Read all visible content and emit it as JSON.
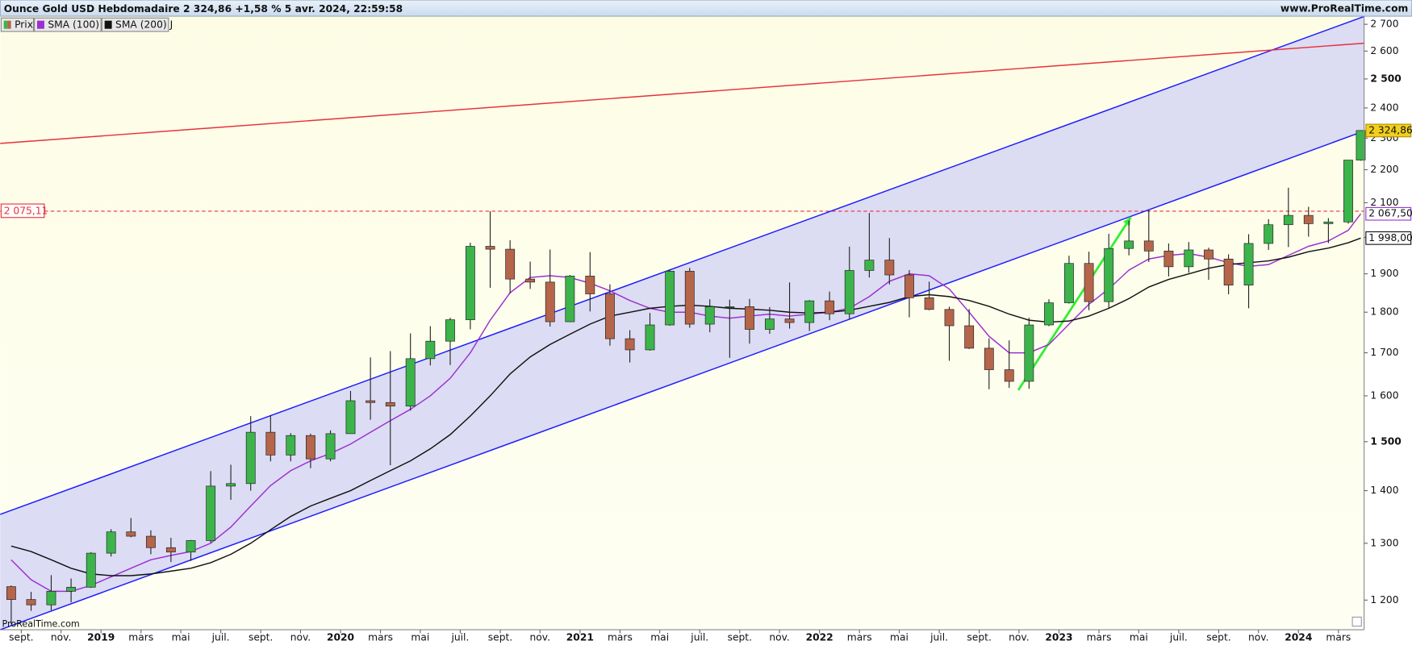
{
  "header": {
    "title": "Ounce Gold USD Hebdomadaire",
    "quote": "2 324,86 +1,58 % 5 avr. 2024, 22:59:58",
    "site": "www.ProRealTime.com",
    "watermark": "ProRealTime.com"
  },
  "chart_data": {
    "type": "candlestick",
    "log_scale": true,
    "xlim": [
      2018.579,
      2024.274
    ],
    "ylim": [
      1151,
      2731
    ],
    "xticks": [
      {
        "value": 2018.667,
        "label": "sept."
      },
      {
        "value": 2018.833,
        "label": "nov."
      },
      2019,
      {
        "value": 2019.167,
        "label": "mars"
      },
      {
        "value": 2019.333,
        "label": "mai"
      },
      {
        "value": 2019.5,
        "label": "juil."
      },
      {
        "value": 2019.667,
        "label": "sept."
      },
      {
        "value": 2019.833,
        "label": "nov."
      },
      2020,
      {
        "value": 2020.167,
        "label": "mars"
      },
      {
        "value": 2020.333,
        "label": "mai"
      },
      {
        "value": 2020.5,
        "label": "juil."
      },
      {
        "value": 2020.667,
        "label": "sept."
      },
      {
        "value": 2020.833,
        "label": "nov."
      },
      2021,
      {
        "value": 2021.167,
        "label": "mars"
      },
      {
        "value": 2021.333,
        "label": "mai"
      },
      {
        "value": 2021.5,
        "label": "juil."
      },
      {
        "value": 2021.667,
        "label": "sept."
      },
      {
        "value": 2021.833,
        "label": "nov."
      },
      2022,
      {
        "value": 2022.167,
        "label": "mars"
      },
      {
        "value": 2022.333,
        "label": "mai"
      },
      {
        "value": 2022.5,
        "label": "juil."
      },
      {
        "value": 2022.667,
        "label": "sept."
      },
      {
        "value": 2022.833,
        "label": "nov."
      },
      2023,
      {
        "value": 2023.167,
        "label": "mars"
      },
      {
        "value": 2023.333,
        "label": "mai"
      },
      {
        "value": 2023.5,
        "label": "juil."
      },
      {
        "value": 2023.667,
        "label": "sept."
      },
      {
        "value": 2023.833,
        "label": "nov."
      },
      2024,
      {
        "value": 2024.167,
        "label": "mars"
      }
    ],
    "yticks": [
      {
        "value": 1200,
        "label": "1 200"
      },
      {
        "value": 1300,
        "label": "1 300"
      },
      {
        "value": 1400,
        "label": "1 400"
      },
      {
        "value": 1500,
        "label": "1 500"
      },
      {
        "value": 1600,
        "label": "1 600"
      },
      {
        "value": 1700,
        "label": "1 700"
      },
      {
        "value": 1800,
        "label": "1 800"
      },
      {
        "value": 1900,
        "label": "1 900"
      },
      {
        "value": 2000,
        "label": "2 000"
      },
      {
        "value": 2100,
        "label": "2 100"
      },
      {
        "value": 2200,
        "label": "2 200"
      },
      {
        "value": 2300,
        "label": "2 300"
      },
      {
        "value": 2400,
        "label": "2 400"
      },
      {
        "value": 2500,
        "label": "2 500"
      },
      {
        "value": 2600,
        "label": "2 600"
      },
      {
        "value": 2700,
        "label": "2 700"
      }
    ],
    "price": {
      "name": "Prix",
      "up_color": "#3cb44b",
      "down_color": "#b5654a",
      "last_label": "2 324,86",
      "x": [
        2018.625,
        2018.708,
        2018.792,
        2018.875,
        2018.958,
        2019.042,
        2019.125,
        2019.208,
        2019.292,
        2019.375,
        2019.458,
        2019.542,
        2019.625,
        2019.708,
        2019.792,
        2019.875,
        2019.958,
        2020.042,
        2020.125,
        2020.208,
        2020.292,
        2020.375,
        2020.458,
        2020.542,
        2020.625,
        2020.708,
        2020.792,
        2020.875,
        2020.958,
        2021.042,
        2021.125,
        2021.208,
        2021.292,
        2021.375,
        2021.458,
        2021.542,
        2021.625,
        2021.708,
        2021.792,
        2021.875,
        2021.958,
        2022.042,
        2022.125,
        2022.208,
        2022.292,
        2022.375,
        2022.458,
        2022.542,
        2022.625,
        2022.708,
        2022.792,
        2022.875,
        2022.958,
        2023.042,
        2023.125,
        2023.208,
        2023.292,
        2023.375,
        2023.458,
        2023.542,
        2023.625,
        2023.708,
        2023.792,
        2023.875,
        2023.958,
        2024.042,
        2024.125,
        2024.208,
        2024.26
      ],
      "open": [
        1223,
        1201,
        1192,
        1215,
        1222,
        1282,
        1321,
        1313,
        1292,
        1284,
        1305,
        1409,
        1414,
        1520,
        1472,
        1513,
        1464,
        1517,
        1589,
        1585,
        1577,
        1686,
        1728,
        1781,
        1975,
        1967,
        1886,
        1878,
        1776,
        1894,
        1847,
        1734,
        1707,
        1768,
        1907,
        1770,
        1814,
        1814,
        1757,
        1783,
        1774,
        1829,
        1796,
        1909,
        1937,
        1897,
        1837,
        1807,
        1766,
        1711,
        1660,
        1633,
        1768,
        1824,
        1928,
        1827,
        1969,
        1990,
        1962,
        1919,
        1965,
        1940,
        1870,
        1983,
        2036,
        2063,
        2039,
        2044,
        2230
      ],
      "high": [
        1225,
        1214,
        1243,
        1237,
        1284,
        1326,
        1347,
        1324,
        1310,
        1306,
        1439,
        1452,
        1555,
        1557,
        1518,
        1517,
        1524,
        1611,
        1689,
        1704,
        1747,
        1765,
        1786,
        1985,
        2075,
        1992,
        1933,
        1966,
        1897,
        1959,
        1872,
        1755,
        1798,
        1912,
        1916,
        1833,
        1832,
        1834,
        1813,
        1877,
        1831,
        1853,
        1974,
        2070,
        1998,
        1910,
        1879,
        1814,
        1808,
        1735,
        1730,
        1786,
        1833,
        1949,
        1960,
        2010,
        2048,
        2079,
        1983,
        1987,
        1971,
        1953,
        2009,
        2052,
        2145,
        2088,
        2055,
        2223,
        2326
      ],
      "low": [
        1160,
        1182,
        1183,
        1196,
        1221,
        1276,
        1311,
        1280,
        1266,
        1268,
        1301,
        1382,
        1400,
        1459,
        1459,
        1445,
        1459,
        1517,
        1547,
        1451,
        1567,
        1670,
        1671,
        1757,
        1863,
        1848,
        1860,
        1764,
        1775,
        1802,
        1717,
        1677,
        1705,
        1766,
        1761,
        1750,
        1688,
        1722,
        1746,
        1759,
        1753,
        1780,
        1781,
        1890,
        1872,
        1787,
        1805,
        1681,
        1709,
        1615,
        1618,
        1616,
        1765,
        1822,
        1805,
        1810,
        1950,
        1932,
        1893,
        1903,
        1884,
        1846,
        1810,
        1965,
        1973,
        2002,
        1984,
        2039,
        2228
      ],
      "close": [
        1201,
        1192,
        1215,
        1222,
        1282,
        1321,
        1313,
        1292,
        1284,
        1305,
        1409,
        1414,
        1520,
        1472,
        1513,
        1464,
        1517,
        1589,
        1585,
        1577,
        1686,
        1728,
        1781,
        1975,
        1967,
        1886,
        1878,
        1776,
        1894,
        1847,
        1734,
        1707,
        1768,
        1907,
        1770,
        1814,
        1814,
        1757,
        1783,
        1774,
        1829,
        1796,
        1909,
        1937,
        1897,
        1837,
        1807,
        1766,
        1711,
        1660,
        1633,
        1768,
        1824,
        1928,
        1827,
        1969,
        1990,
        1962,
        1919,
        1965,
        1940,
        1870,
        1983,
        2036,
        2063,
        2039,
        2044,
        2230,
        2324.86
      ]
    },
    "series": [
      {
        "name": "SMA (100) J",
        "color": "#9b30d0",
        "last_label": "2 067,50",
        "values": [
          1270,
          1235,
          1215,
          1215,
          1225,
          1240,
          1255,
          1270,
          1278,
          1285,
          1300,
          1330,
          1370,
          1410,
          1440,
          1460,
          1475,
          1495,
          1520,
          1545,
          1570,
          1600,
          1640,
          1700,
          1780,
          1850,
          1890,
          1895,
          1890,
          1875,
          1855,
          1830,
          1810,
          1800,
          1800,
          1790,
          1785,
          1790,
          1795,
          1790,
          1795,
          1800,
          1810,
          1840,
          1880,
          1900,
          1895,
          1860,
          1800,
          1740,
          1700,
          1700,
          1720,
          1770,
          1820,
          1860,
          1910,
          1940,
          1950,
          1955,
          1945,
          1930,
          1920,
          1925,
          1950,
          1975,
          1990,
          2020,
          2067.5
        ]
      },
      {
        "name": "SMA (200) J",
        "color": "#111111",
        "last_label": "1 998,00",
        "values": [
          1295,
          1285,
          1270,
          1255,
          1245,
          1242,
          1242,
          1245,
          1250,
          1255,
          1265,
          1280,
          1300,
          1325,
          1350,
          1370,
          1385,
          1400,
          1420,
          1440,
          1460,
          1485,
          1515,
          1555,
          1600,
          1650,
          1690,
          1720,
          1745,
          1770,
          1790,
          1800,
          1810,
          1815,
          1818,
          1815,
          1810,
          1808,
          1805,
          1800,
          1798,
          1800,
          1805,
          1815,
          1825,
          1840,
          1845,
          1840,
          1830,
          1815,
          1795,
          1780,
          1775,
          1778,
          1790,
          1810,
          1835,
          1865,
          1885,
          1900,
          1915,
          1925,
          1930,
          1935,
          1945,
          1960,
          1970,
          1985,
          1998
        ]
      }
    ],
    "hline": {
      "value": 2075.11,
      "label": "2 075,11",
      "color": "#e8303a"
    },
    "channel_fill": "#d6d6f4",
    "trendlines": [
      {
        "color": "#1a1aff",
        "x": [
          2018.579,
          2024.274
        ],
        "y": [
          1354,
          2730
        ]
      },
      {
        "color": "#1a1aff",
        "x": [
          2018.579,
          2024.274
        ],
        "y": [
          1151,
          2323
        ]
      },
      {
        "color": "#e8303a",
        "x": [
          2018.579,
          2024.274
        ],
        "y": [
          2283,
          2629
        ]
      },
      {
        "color": "#33ee33",
        "x": [
          2022.83,
          2023.3
        ],
        "y": [
          1613,
          2058
        ],
        "arrow": true
      }
    ]
  }
}
